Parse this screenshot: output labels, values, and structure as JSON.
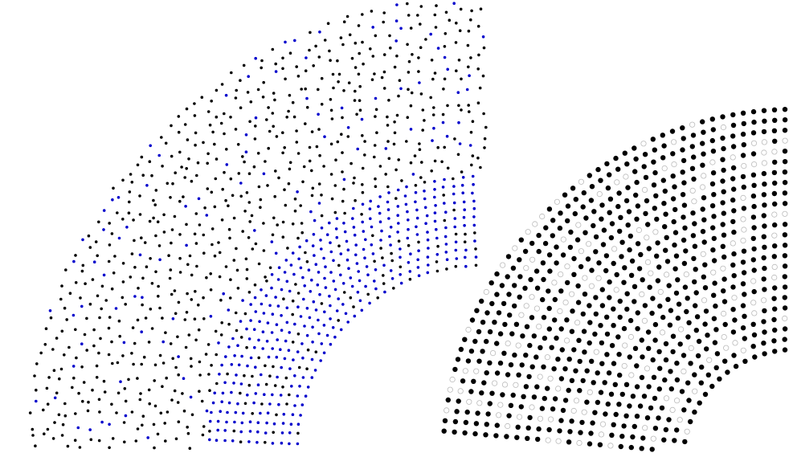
{
  "figure": {
    "panels": [
      {
        "id": "left-sector",
        "description_kind": "annular-sector-point-cloud",
        "point_style": "filled",
        "dot_colors": [
          "#000000",
          "#0000cc"
        ],
        "blue_fraction": 0.12,
        "jitter": 0.35
      },
      {
        "id": "middle-sector",
        "description_kind": "annular-sector-hexagonal-rings",
        "point_style": "filled",
        "dot_colors": [
          "#000000",
          "#0000cc"
        ],
        "blue_fraction": 0.85,
        "jitter": 0.08
      },
      {
        "id": "right-sector",
        "description_kind": "annular-sector-lattice",
        "point_style": "filled-and-hollow",
        "dot_colors": [
          "#000000",
          "#bbbbbb"
        ],
        "hollow_fraction": 0.18,
        "jitter": 0.0
      }
    ]
  }
}
